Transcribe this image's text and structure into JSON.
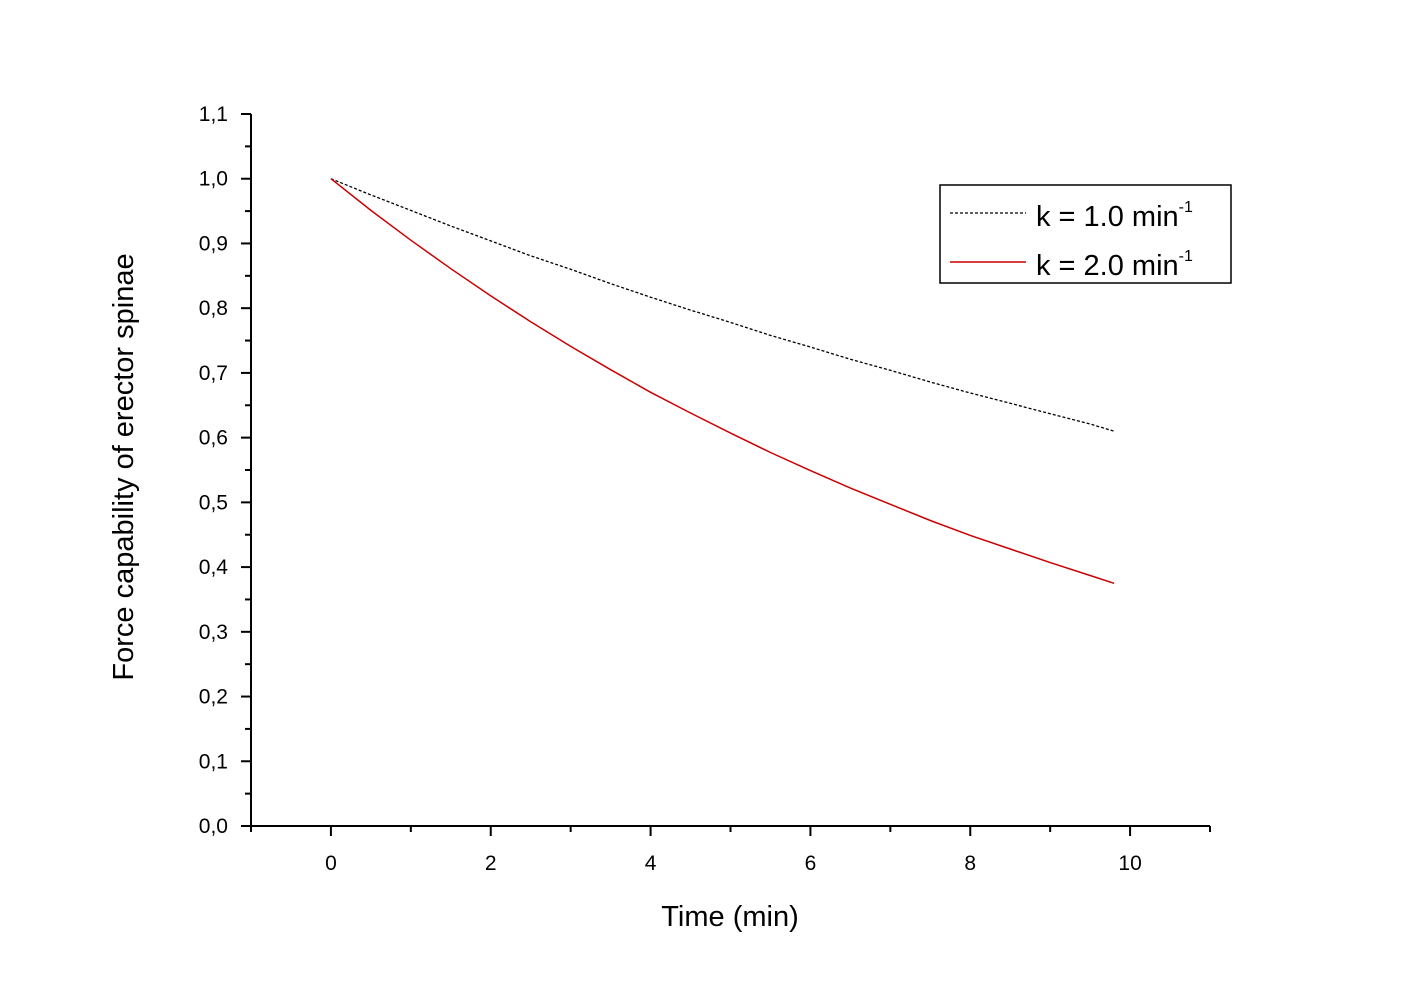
{
  "chart_data": {
    "type": "line",
    "title": "",
    "xlabel": "Time (min)",
    "ylabel": "Force capability of erector spinae",
    "xlim": [
      -1,
      11
    ],
    "ylim": [
      0.0,
      1.1
    ],
    "x_ticks": [
      "0",
      "2",
      "4",
      "6",
      "8",
      "10"
    ],
    "y_ticks": [
      "0,0",
      "0,1",
      "0,2",
      "0,3",
      "0,4",
      "0,5",
      "0,6",
      "0,7",
      "0,8",
      "0,9",
      "1,0",
      "1,1"
    ],
    "grid": false,
    "legend_position": "top-right",
    "x": [
      0,
      0.5,
      1,
      1.5,
      2,
      2.5,
      3,
      3.5,
      4,
      4.5,
      5,
      5.5,
      6,
      6.5,
      7,
      7.5,
      8,
      8.5,
      9,
      9.5,
      9.8
    ],
    "series": [
      {
        "name": "k = 1.0 min",
        "name_sup": "-1",
        "color": "#000000",
        "dash": "dotted",
        "values": [
          1.0,
          0.975,
          0.951,
          0.927,
          0.904,
          0.881,
          0.86,
          0.838,
          0.817,
          0.797,
          0.778,
          0.758,
          0.74,
          0.721,
          0.704,
          0.686,
          0.669,
          0.653,
          0.637,
          0.621,
          0.61
        ]
      },
      {
        "name": "k = 2.0 min",
        "name_sup": "-1",
        "color": "#cc0000",
        "dash": "solid",
        "values": [
          1.0,
          0.951,
          0.905,
          0.861,
          0.819,
          0.779,
          0.741,
          0.705,
          0.67,
          0.638,
          0.607,
          0.577,
          0.549,
          0.522,
          0.497,
          0.472,
          0.449,
          0.428,
          0.407,
          0.387,
          0.375
        ]
      }
    ]
  }
}
